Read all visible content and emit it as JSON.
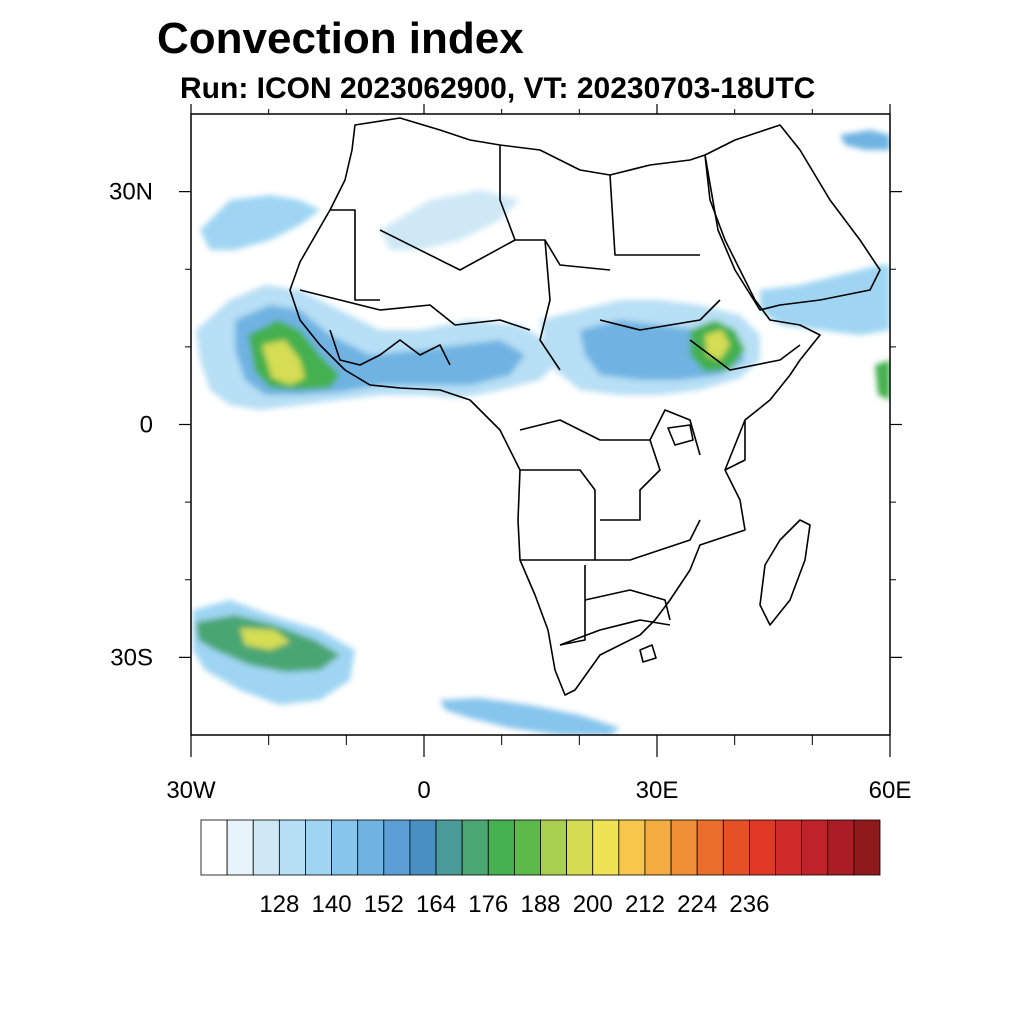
{
  "title": "Convection index",
  "subtitle": "Run: ICON 2023062900,  VT: 20230703-18UTC",
  "map": {
    "lon_range": [
      -30,
      60
    ],
    "lat_range": [
      -40,
      40
    ],
    "y_ticks": [
      {
        "lat": 30,
        "label": "30N"
      },
      {
        "lat": 0,
        "label": "0"
      },
      {
        "lat": -30,
        "label": "30S"
      }
    ],
    "x_ticks": [
      {
        "lon": -30,
        "label": "30W"
      },
      {
        "lon": 0,
        "label": "0"
      },
      {
        "lon": 30,
        "label": "30E"
      },
      {
        "lon": 60,
        "label": "60E"
      }
    ],
    "minor_lons": [
      -20,
      -10,
      10,
      20,
      40,
      50
    ],
    "minor_lats": [
      20,
      10,
      -10,
      -20
    ]
  },
  "colorbar": {
    "labels": [
      "128",
      "140",
      "152",
      "164",
      "176",
      "188",
      "200",
      "212",
      "224",
      "236"
    ],
    "colors": [
      "#ffffff",
      "#e8f4fb",
      "#cfe8f6",
      "#b7dff5",
      "#9fd5f3",
      "#86c5ec",
      "#6fb3e2",
      "#5b9fd6",
      "#4a8fc4",
      "#4a9c9a",
      "#4aa673",
      "#45b04f",
      "#5cba4a",
      "#a8cf4f",
      "#d4dd52",
      "#f0e353",
      "#f7c64a",
      "#f4ab3f",
      "#f08f36",
      "#ec6e2c",
      "#e65026",
      "#df3826",
      "#d12a2a",
      "#c0222a",
      "#ab1d24",
      "#8f1a1c"
    ]
  }
}
